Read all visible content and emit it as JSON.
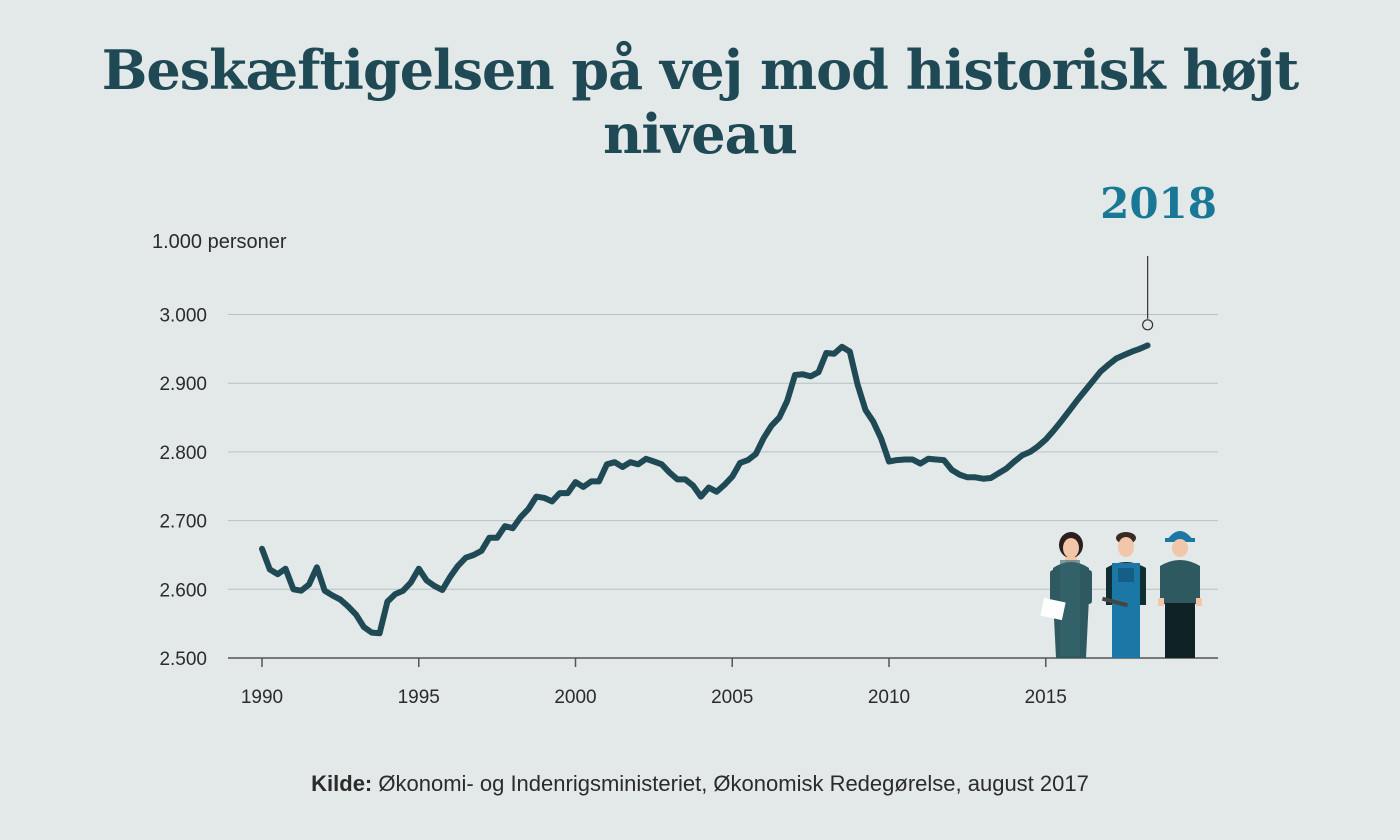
{
  "chart_data": {
    "type": "line",
    "title": "Beskæftigelsen på vej mod historisk højt niveau",
    "ylabel": "1.000 personer",
    "ylim": [
      2500,
      3000
    ],
    "xlim": [
      1990,
      2020
    ],
    "yticks": [
      2500,
      2600,
      2700,
      2800,
      2900,
      3000
    ],
    "ytick_labels": [
      "2.500",
      "2.600",
      "2.700",
      "2.800",
      "2.900",
      "3.000"
    ],
    "xticks": [
      1990,
      1995,
      2000,
      2005,
      2010,
      2015
    ],
    "xtick_labels": [
      "1990",
      "1995",
      "2000",
      "2005",
      "2010",
      "2015"
    ],
    "grid": true,
    "highlight": {
      "label": "2018",
      "x": 2018.25,
      "y": 2985
    },
    "series": [
      {
        "color": "#1f4a55",
        "x": [
          1990,
          1990.25,
          1990.5,
          1990.75,
          1991,
          1991.25,
          1991.5,
          1991.75,
          1992,
          1992.25,
          1992.5,
          1992.75,
          1993,
          1993.25,
          1993.5,
          1993.75,
          1994,
          1994.25,
          1994.5,
          1994.75,
          1995,
          1995.25,
          1995.5,
          1995.75,
          1996,
          1996.25,
          1996.5,
          1996.75,
          1997,
          1997.25,
          1997.5,
          1997.75,
          1998,
          1998.25,
          1998.5,
          1998.75,
          1999,
          1999.25,
          1999.5,
          1999.75,
          2000,
          2000.25,
          2000.5,
          2000.75,
          2001,
          2001.25,
          2001.5,
          2001.75,
          2002,
          2002.25,
          2002.5,
          2002.75,
          2003,
          2003.25,
          2003.5,
          2003.75,
          2004,
          2004.25,
          2004.5,
          2004.75,
          2005,
          2005.25,
          2005.5,
          2005.75,
          2006,
          2006.25,
          2006.5,
          2006.75,
          2007,
          2007.25,
          2007.5,
          2007.75,
          2008,
          2008.25,
          2008.5,
          2008.75,
          2009,
          2009.25,
          2009.5,
          2009.75,
          2010,
          2010.25,
          2010.5,
          2010.75,
          2011,
          2011.25,
          2011.5,
          2011.75,
          2012,
          2012.25,
          2012.5,
          2012.75,
          2013,
          2013.25,
          2013.5,
          2013.75,
          2014,
          2014.25,
          2014.5,
          2014.75,
          2015,
          2015.25,
          2015.5,
          2015.75,
          2016,
          2016.25,
          2016.5,
          2016.75,
          2017,
          2017.25,
          2017.5,
          2017.75,
          2018,
          2018.25
        ],
        "values": [
          2659,
          2629,
          2622,
          2630,
          2600,
          2598,
          2607,
          2632,
          2598,
          2591,
          2585,
          2575,
          2563,
          2545,
          2537,
          2536,
          2582,
          2593,
          2598,
          2610,
          2630,
          2613,
          2605,
          2599,
          2618,
          2634,
          2646,
          2650,
          2656,
          2675,
          2675,
          2692,
          2689,
          2705,
          2717,
          2735,
          2733,
          2728,
          2740,
          2740,
          2756,
          2749,
          2757,
          2757,
          2782,
          2785,
          2778,
          2785,
          2782,
          2790,
          2786,
          2782,
          2770,
          2760,
          2760,
          2751,
          2735,
          2748,
          2742,
          2752,
          2764,
          2784,
          2788,
          2797,
          2820,
          2838,
          2850,
          2874,
          2912,
          2913,
          2910,
          2916,
          2944,
          2943,
          2953,
          2946,
          2898,
          2861,
          2844,
          2819,
          2786,
          2788,
          2789,
          2789,
          2783,
          2790,
          2789,
          2788,
          2774,
          2767,
          2763,
          2763,
          2761,
          2762,
          2769,
          2776,
          2786,
          2795,
          2800,
          2808,
          2818,
          2831,
          2845,
          2860,
          2875,
          2889,
          2903,
          2917,
          2927,
          2936,
          2941,
          2946,
          2950,
          2955
        ]
      }
    ]
  },
  "source": {
    "label": "Kilde:",
    "text": "Økonomi- og Indenrigsministeriet, Økonomisk Redegørelse, august 2017"
  },
  "icons": [
    "woman-office-worker-icon",
    "mechanic-worker-icon",
    "construction-worker-icon"
  ]
}
